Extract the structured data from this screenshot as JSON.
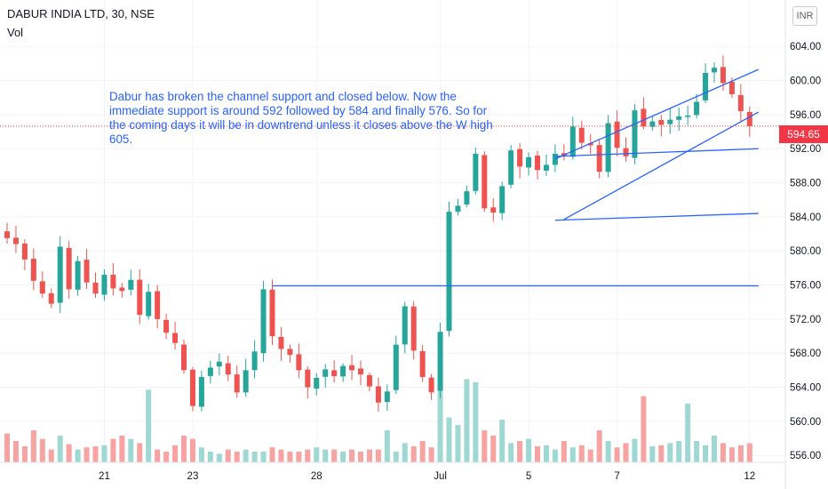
{
  "header": {
    "title": "DABUR INDIA LTD, 30, NSE",
    "volume_label": "Vol",
    "currency": "INR"
  },
  "annotation": "Dabur has broken the channel support and closed below. Now the immediate support is around 592 followed by 584 and finally 576. So for the coming days it will be in downtrend unless it closes above the W high 605.",
  "last_price_label": "594.65",
  "colors": {
    "up": "#26a69a",
    "down": "#ef5350",
    "up_volume": "#9fd8d2",
    "down_volume": "#f6a3a2",
    "trendline": "#2962ff",
    "price_line": "#f23645"
  },
  "chart_data": {
    "type": "candlestick",
    "symbol": "DABUR INDIA LTD",
    "interval": "30",
    "exchange": "NSE",
    "last_price": 594.65,
    "ylim": [
      555.5,
      607
    ],
    "y_ticks": [
      "604.00",
      "600.00",
      "596.00",
      "592.00",
      "588.00",
      "584.00",
      "580.00",
      "576.00",
      "572.00",
      "568.00",
      "564.00",
      "560.00",
      "556.00"
    ],
    "x_ticks": [
      {
        "label": "21",
        "index": 11
      },
      {
        "label": "23",
        "index": 21
      },
      {
        "label": "28",
        "index": 35
      },
      {
        "label": "Jul",
        "index": 49
      },
      {
        "label": "5",
        "index": 59
      },
      {
        "label": "7",
        "index": 69
      },
      {
        "label": "12",
        "index": 84
      }
    ],
    "closes": [
      581.5,
      580.8,
      579.0,
      576.5,
      575.0,
      573.8,
      580.5,
      575.5,
      578.8,
      576.3,
      575.0,
      577.2,
      575.6,
      575.3,
      576.6,
      572.5,
      575.2,
      572.0,
      570.4,
      569.2,
      566.0,
      561.8,
      565.2,
      566.3,
      567.0,
      565.5,
      563.4,
      566.0,
      568.2,
      575.5,
      570.0,
      568.5,
      567.8,
      566.0,
      564.0,
      565.1,
      566.1,
      565.3,
      566.5,
      566.0,
      565.5,
      564.1,
      562.2,
      563.5,
      569.0,
      573.5,
      568.3,
      565.2,
      563.4,
      570.5,
      584.6,
      585.3,
      587.0,
      591.4,
      585.0,
      584.5,
      587.6,
      591.8,
      589.9,
      591.0,
      589.5,
      590.1,
      591.4,
      591.2,
      594.6,
      592.7,
      592.4,
      589.3,
      595.0,
      592.1,
      591.1,
      596.5,
      594.6,
      595.2,
      594.8,
      595.4,
      595.8,
      595.9,
      597.5,
      600.9,
      601.5,
      599.7,
      598.4,
      596.4,
      594.65
    ],
    "volumes": [
      0.27,
      0.2,
      0.15,
      0.3,
      0.22,
      0.12,
      0.25,
      0.17,
      0.12,
      0.14,
      0.15,
      0.16,
      0.22,
      0.25,
      0.22,
      0.18,
      0.68,
      0.12,
      0.1,
      0.16,
      0.25,
      0.22,
      0.14,
      0.1,
      0.08,
      0.12,
      0.1,
      0.12,
      0.1,
      0.1,
      0.14,
      0.12,
      0.1,
      0.1,
      0.12,
      0.14,
      0.12,
      0.12,
      0.1,
      0.12,
      0.1,
      0.12,
      0.12,
      0.3,
      0.1,
      0.18,
      0.15,
      0.2,
      0.14,
      0.78,
      0.42,
      0.35,
      0.78,
      0.75,
      0.3,
      0.25,
      0.4,
      0.18,
      0.2,
      0.22,
      0.15,
      0.16,
      0.12,
      0.2,
      0.14,
      0.16,
      0.12,
      0.3,
      0.2,
      0.14,
      0.18,
      0.22,
      0.62,
      0.15,
      0.16,
      0.18,
      0.2,
      0.55,
      0.2,
      0.16,
      0.25,
      0.18,
      0.14,
      0.16,
      0.18
    ],
    "lines": [
      {
        "label": "channel-upper",
        "from": [
          62,
          590.8
        ],
        "to": [
          85,
          601.3
        ]
      },
      {
        "label": "channel-lower",
        "from": [
          63,
          583.7
        ],
        "to": [
          85,
          596.3
        ]
      },
      {
        "label": "support-592",
        "from": [
          62,
          591.1
        ],
        "to": [
          85,
          592.0
        ]
      },
      {
        "label": "support-584",
        "from": [
          62,
          583.6
        ],
        "to": [
          85,
          584.4
        ]
      },
      {
        "label": "support-576",
        "from": [
          30,
          575.9
        ],
        "to": [
          85,
          575.9
        ]
      }
    ],
    "legend": "none"
  }
}
